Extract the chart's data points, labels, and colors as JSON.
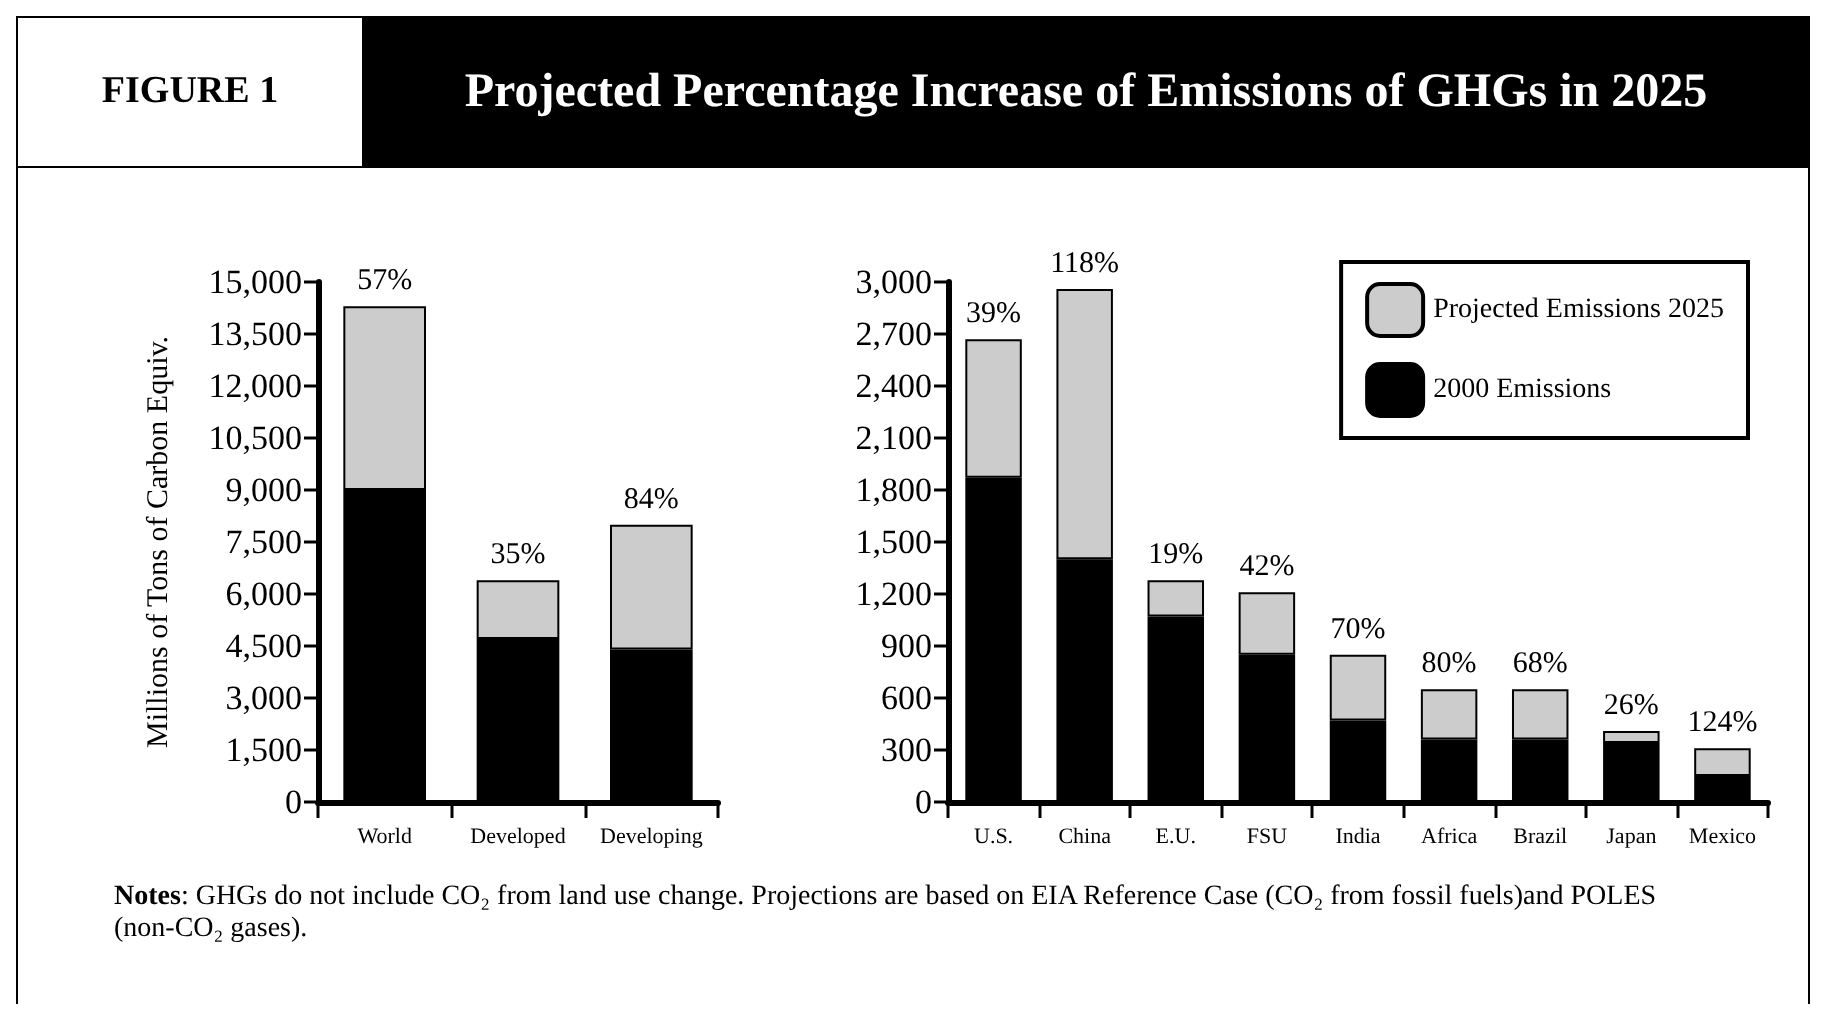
{
  "chart_data": [
    {
      "type": "bar",
      "title": "Projected Percentage Increase of Emissions of GHGs in 2025",
      "annotations": [
        "FIGURE 1",
        "Notes: GHGs do not include CO₂ from land use change. Projections are based on EIA Reference Case (CO₂ from fossil fuels)and POLES (non-CO₂ gases).",
        {
          "text": "57%",
          "x": "World",
          "y": 14300
        },
        {
          "text": "35%",
          "x": "Developed",
          "y": 6400
        },
        {
          "text": "84%",
          "x": "Developing",
          "y": 8000
        }
      ],
      "ylabel": "Millions of Tons of Carbon Equiv.",
      "categories": [
        "World",
        "Developed",
        "Developing"
      ],
      "stacked": true,
      "legend": false,
      "grid": false,
      "series": [
        {
          "color": "#000000",
          "values": [
            9000,
            4700,
            4400
          ]
        },
        {
          "color": "#cccccc",
          "values": [
            5300,
            1700,
            3600
          ]
        }
      ],
      "ylim": [
        0,
        15000
      ],
      "yticks": [
        0,
        {
          "value": 1500,
          "label": "1,500"
        },
        {
          "value": 3000,
          "label": "3,000"
        },
        {
          "value": 4500,
          "label": "4,500"
        },
        {
          "value": 6000,
          "label": "6,000"
        },
        {
          "value": 7500,
          "label": "7,500"
        },
        {
          "value": 9000,
          "label": "9,000"
        },
        {
          "value": 10500,
          "label": "10,500"
        },
        {
          "value": 12000,
          "label": "12,000"
        },
        {
          "value": 13500,
          "label": "13,500"
        },
        {
          "value": 15000,
          "label": "15,000"
        }
      ]
    },
    {
      "type": "bar",
      "categories": [
        "U.S.",
        "China",
        "E.U.",
        "FSU",
        "India",
        "Africa",
        "Brazil",
        "Japan",
        "Mexico"
      ],
      "stacked": true,
      "legend": "top right",
      "grid": false,
      "annotations": [
        {
          "text": "39%",
          "x": "U.S.",
          "y": 2670
        },
        {
          "text": "118%",
          "x": "China",
          "y": 2960
        },
        {
          "text": "19%",
          "x": "E.U.",
          "y": 1280
        },
        {
          "text": "42%",
          "x": "FSU",
          "y": 1210
        },
        {
          "text": "70%",
          "x": "India",
          "y": 850
        },
        {
          "text": "80%",
          "x": "Africa",
          "y": 650
        },
        {
          "text": "68%",
          "x": "Brazil",
          "y": 650
        },
        {
          "text": "26%",
          "x": "Japan",
          "y": 410
        },
        {
          "text": "124%",
          "x": "Mexico",
          "y": 310
        }
      ],
      "series": [
        {
          "name": "2000 Emissions",
          "color": "#000000",
          "values": [
            1870,
            1400,
            1070,
            850,
            470,
            360,
            360,
            340,
            150
          ]
        },
        {
          "name": "Projected Emissions 2025",
          "color": "#cccccc",
          "values": [
            800,
            1560,
            210,
            360,
            380,
            290,
            290,
            70,
            160
          ]
        }
      ],
      "ylim": [
        0,
        3000
      ],
      "yticks": [
        0,
        300,
        600,
        900,
        {
          "value": 1200,
          "label": "1,200"
        },
        {
          "value": 1500,
          "label": "1,500"
        },
        {
          "value": 1800,
          "label": "1,800"
        },
        {
          "value": 2100,
          "label": "2,100"
        },
        {
          "value": 2400,
          "label": "2,400"
        },
        {
          "value": 2700,
          "label": "2,700"
        },
        {
          "value": 3000,
          "label": "3,000"
        }
      ]
    }
  ]
}
